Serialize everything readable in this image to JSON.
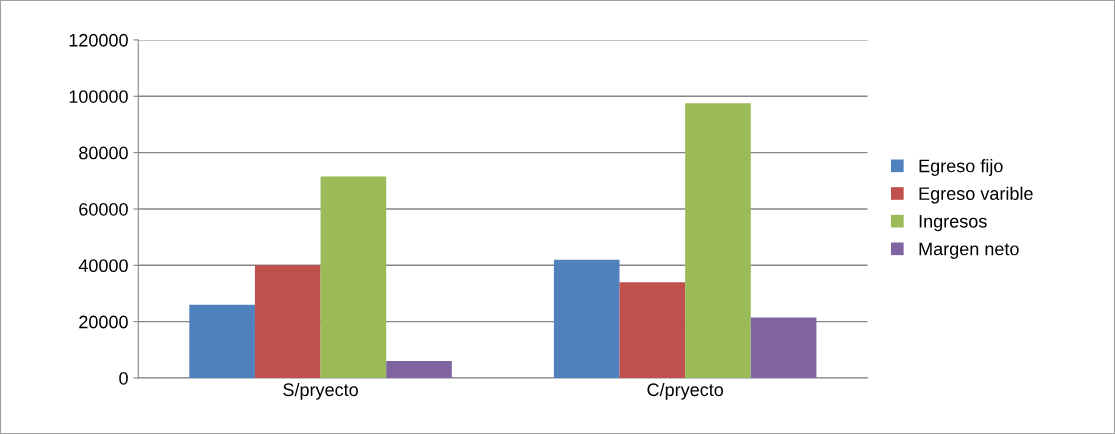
{
  "chart_data": {
    "type": "bar",
    "categories": [
      "S/pryecto",
      "C/pryecto"
    ],
    "series": [
      {
        "name": "Egreso fijo",
        "color": "#4f81bd",
        "values": [
          26000,
          42000
        ]
      },
      {
        "name": "Egreso varible",
        "color": "#c0504d",
        "values": [
          40000,
          34000
        ]
      },
      {
        "name": "Ingresos",
        "color": "#9bbb59",
        "values": [
          71500,
          97500
        ]
      },
      {
        "name": "Margen neto",
        "color": "#8064a2",
        "values": [
          6000,
          21500
        ]
      }
    ],
    "ylim": [
      0,
      120000
    ],
    "yticks": [
      0,
      20000,
      40000,
      60000,
      80000,
      100000,
      120000
    ],
    "grid": "y",
    "legend": "right"
  }
}
